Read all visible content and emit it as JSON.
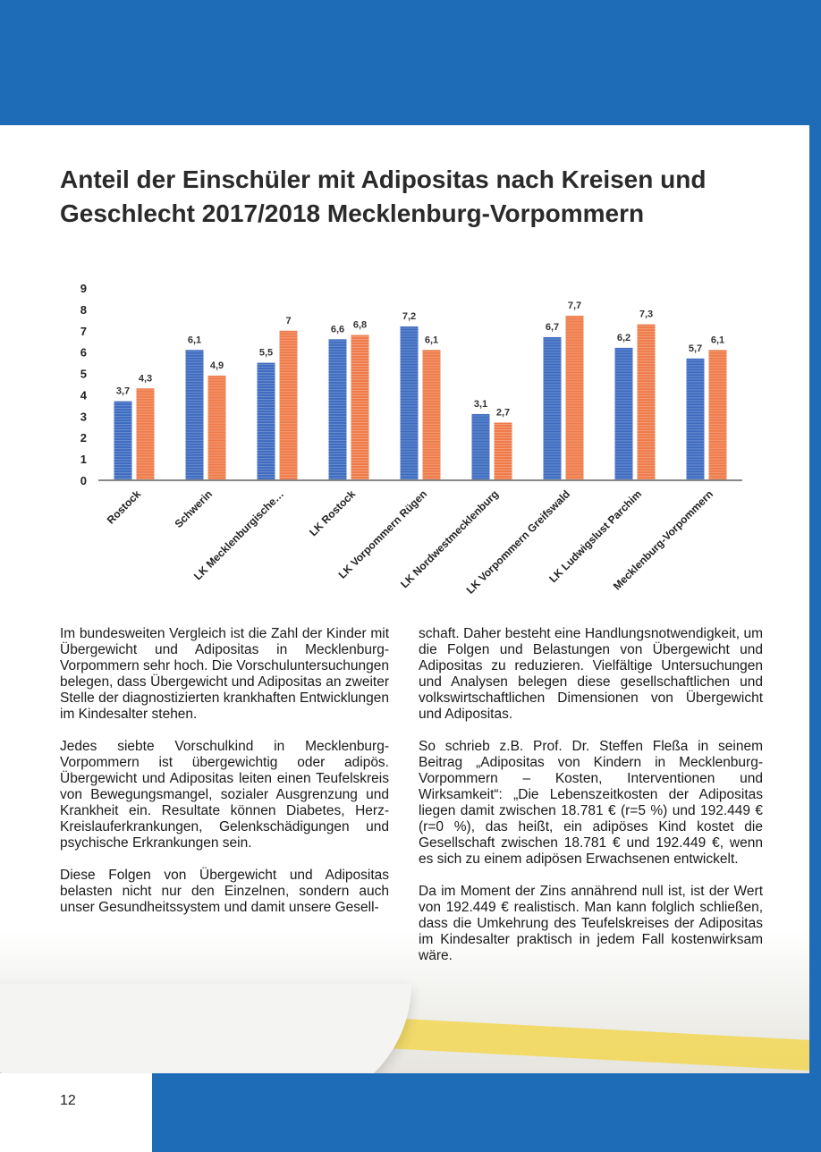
{
  "header": {
    "title": "Anteil der Einschüler mit Adipositas nach Kreisen und Geschlecht 2017/2018 Mecklenburg-Vorpommern"
  },
  "chart_data": {
    "type": "bar",
    "categories": [
      "Rostock",
      "Schwerin",
      "LK Mecklenburgische…",
      "LK Rostock",
      "LK Vorpommern Rügen",
      "LK Nordwestmecklenburg",
      "LK Vorpommern Greifswald",
      "LK Ludwigslust Parchim",
      "Mecklenburg-Vorpommern"
    ],
    "series": [
      {
        "color": "#3d6bc0",
        "values": [
          3.7,
          6.1,
          5.5,
          6.6,
          7.2,
          3.1,
          6.7,
          6.2,
          5.7
        ],
        "value_labels": [
          "3,7",
          "6,1",
          "5,5",
          "6,6",
          "7,2",
          "3,1",
          "6,7",
          "6,2",
          "5,7"
        ]
      },
      {
        "color": "#ef7b4a",
        "values": [
          4.3,
          4.9,
          7,
          6.8,
          6.1,
          2.7,
          7.7,
          7.3,
          6.1
        ],
        "value_labels": [
          "4,3",
          "4,9",
          "7",
          "6,8",
          "6,1",
          "2,7",
          "7,7",
          "7,3",
          "6,1"
        ]
      }
    ],
    "ylim": [
      0,
      9
    ],
    "yticks": [
      0,
      1,
      2,
      3,
      4,
      5,
      6,
      7,
      8,
      9
    ],
    "grid": false
  },
  "columns": {
    "left": [
      "Im bundesweiten Vergleich ist die Zahl der Kinder mit Übergewicht und Adipositas in Mecklenburg-Vorpommern sehr hoch. Die Vorschuluntersuchungen belegen, dass Übergewicht und Adipositas an zweiter Stelle der diagnostizierten krankhaften Entwicklungen im Kindesalter stehen.",
      "Jedes siebte Vorschulkind in Mecklenburg-Vorpommern ist übergewichtig oder adipös. Übergewicht und Adipositas leiten einen Teufelskreis von Bewegungsmangel, sozialer Ausgrenzung und Krankheit ein. Resultate können Diabetes, Herz-Kreislauferkrankungen, Gelenkschädigungen und psychische Erkrankungen sein.",
      "Diese Folgen von Übergewicht und Adipositas belasten nicht nur den Einzelnen, sondern auch unser Gesundheitssystem und damit unsere Gesell-"
    ],
    "right": [
      "schaft. Daher besteht eine Handlungsnotwendigkeit, um die Folgen und Belastungen von Übergewicht und Adipositas zu reduzieren. Vielfältige Untersuchungen und Analysen belegen diese gesellschaftlichen und volkswirtschaftlichen Dimensionen von Übergewicht und Adipositas.",
      "So schrieb z.B. Prof. Dr. Steffen Fleßa in seinem Beitrag „Adipositas von Kindern in Mecklenburg-Vorpommern – Kosten, Interventionen und Wirksamkeit“: „Die Lebenszeitkosten der Adipositas liegen damit zwischen 18.781 € (r=5 %) und 192.449 € (r=0 %), das heißt, ein adipöses Kind kostet die Gesellschaft zwischen 18.781 € und 192.449 €, wenn es sich zu einem adipösen Erwachsenen entwickelt.",
      "Da im Moment der Zins annährend null ist, ist der Wert von 192.449 € realistisch. Man kann folglich schließen, dass die Umkehrung des Teufelskreises der Adipositas im Kindesalter praktisch in jedem Fall kostenwirksam wäre."
    ]
  },
  "page_number": "12"
}
